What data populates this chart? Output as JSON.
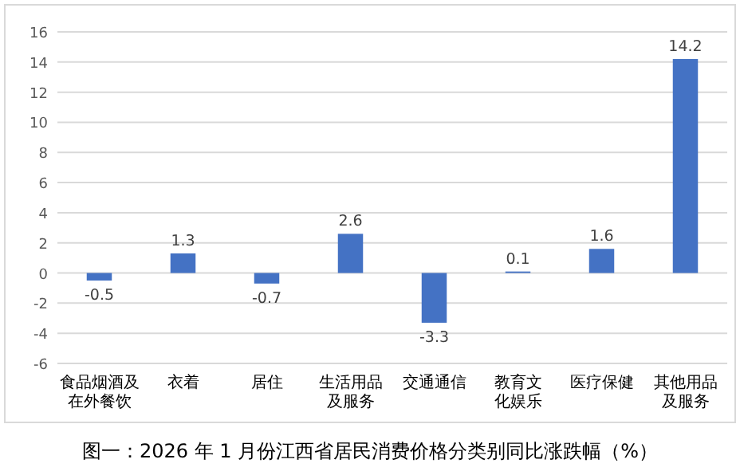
{
  "chart_data": {
    "type": "bar",
    "title": "图一：2026 年 1 月份江西省居民消费价格分类别同比涨跌幅（%）",
    "categories": [
      "食品烟酒及在外餐饮",
      "衣着",
      "居住",
      "生活用品及服务",
      "交通通信",
      "教育文化娱乐",
      "医疗保健",
      "其他用品及服务"
    ],
    "values": [
      -0.5,
      1.3,
      -0.7,
      2.6,
      -3.3,
      0.1,
      1.6,
      14.2
    ],
    "color": "#4472c4",
    "ylim": [
      -6,
      16
    ],
    "yticks": [
      -6,
      -4,
      -2,
      0,
      2,
      4,
      6,
      8,
      10,
      12,
      14,
      16
    ],
    "grid": "y",
    "data_labels": true
  }
}
